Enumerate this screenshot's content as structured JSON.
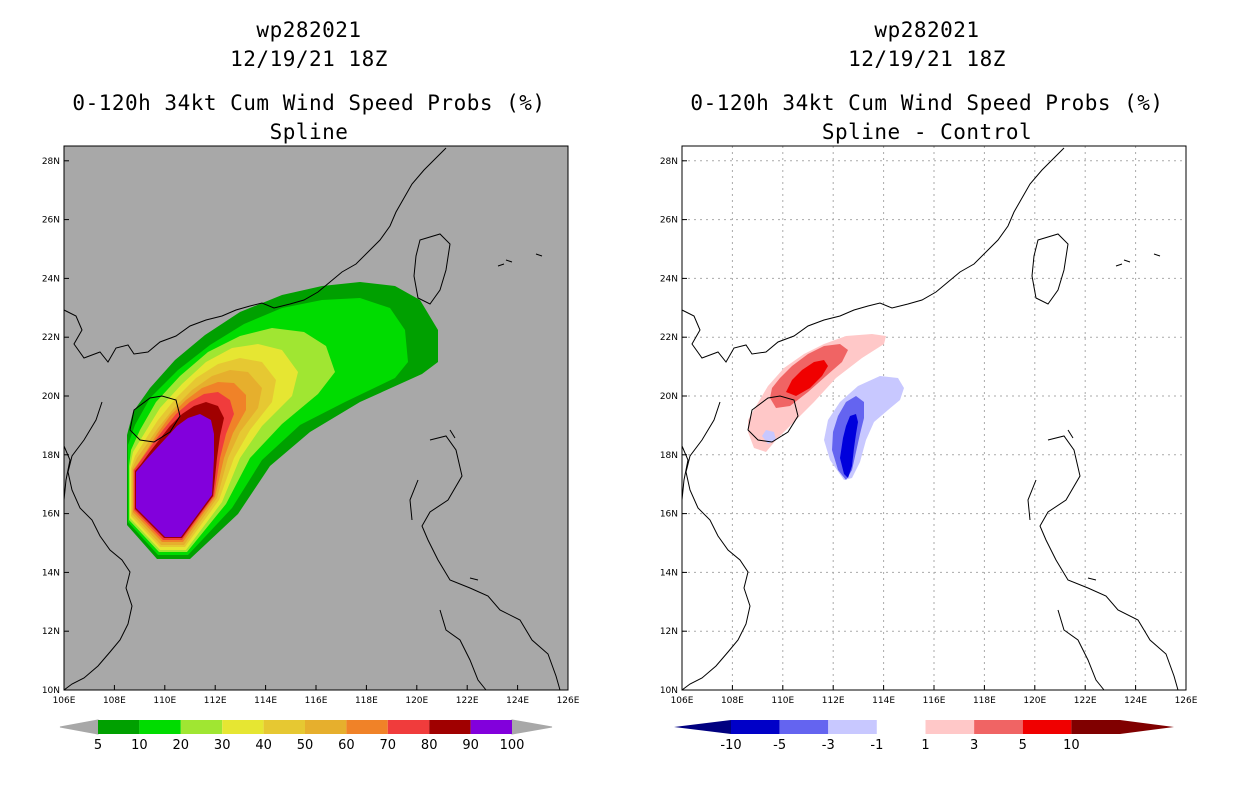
{
  "left_panel": {
    "title_line1": "wp282021",
    "title_line2": "12/19/21 18Z",
    "title_line3": "0-120h 34kt Cum Wind Speed Probs (%)",
    "title_line4": "Spline",
    "background_color": "#a8a8a8",
    "colorbar": {
      "labels": [
        "5",
        "10",
        "20",
        "30",
        "40",
        "50",
        "60",
        "70",
        "80",
        "90",
        "100"
      ],
      "colors": [
        "#00a000",
        "#00dc00",
        "#a0e632",
        "#e6e632",
        "#e6c832",
        "#e6af2d",
        "#f08228",
        "#f03c3c",
        "#a00000",
        "#8200dc"
      ]
    }
  },
  "right_panel": {
    "title_line1": "wp282021",
    "title_line2": "12/19/21 18Z",
    "title_line3": "0-120h 34kt Cum Wind Speed Probs (%)",
    "title_line4": "Spline - Control",
    "background_color": "#ffffff",
    "colorbar": {
      "labels": [
        "-10",
        "-5",
        "-3",
        "-1",
        "1",
        "3",
        "5",
        "10"
      ],
      "colors": [
        "#0000c8",
        "#6464f0",
        "#c8c8ff",
        "#ffffff",
        "#ffc8c8",
        "#f06464",
        "#f00000",
        "#800000"
      ]
    }
  },
  "axes": {
    "lon_labels": [
      "106E",
      "108E",
      "110E",
      "112E",
      "114E",
      "116E",
      "118E",
      "120E",
      "122E",
      "124E",
      "126E"
    ],
    "lat_labels": [
      "10N",
      "12N",
      "14N",
      "16N",
      "18N",
      "20N",
      "22N",
      "24N",
      "26N",
      "28N"
    ]
  }
}
